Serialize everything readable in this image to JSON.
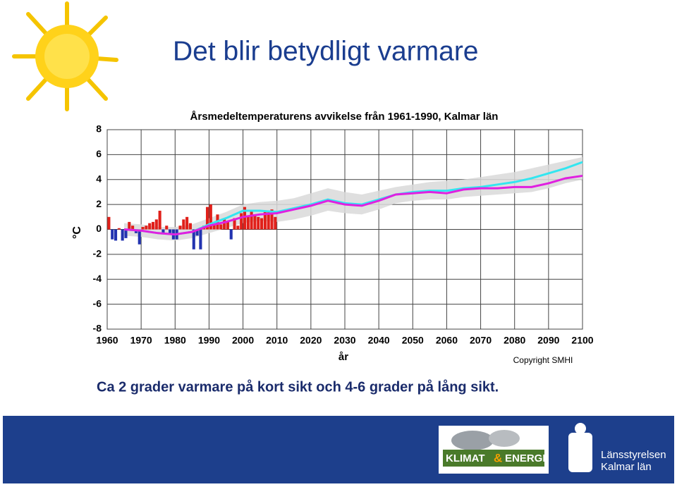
{
  "slide": {
    "title": "Det blir betydligt varmare",
    "subtitle": "Ca 2 grader varmare på kort sikt och 4-6 grader på lång sikt."
  },
  "chart_data": {
    "type": "bar-line",
    "title": "Årsmedeltemperaturens avvikelse från 1961-1990, Kalmar län",
    "x_label": "år",
    "y_label": "°C",
    "note": "Copyright SMHI",
    "xlim": [
      1960,
      2100
    ],
    "xticks": [
      1960,
      1970,
      1980,
      1990,
      2000,
      2010,
      2020,
      2030,
      2040,
      2050,
      2060,
      2070,
      2080,
      2090,
      2100
    ],
    "ylim": [
      -8,
      8
    ],
    "yticks": [
      8,
      6,
      4,
      2,
      0,
      -2,
      -4,
      -6,
      -8
    ],
    "grid": true,
    "bars": {
      "positive_color": "#e0201a",
      "negative_color": "#2233b0",
      "x": [
        1960,
        1961,
        1962,
        1963,
        1964,
        1965,
        1966,
        1967,
        1968,
        1969,
        1970,
        1971,
        1972,
        1973,
        1974,
        1975,
        1976,
        1977,
        1978,
        1979,
        1980,
        1981,
        1982,
        1983,
        1984,
        1985,
        1986,
        1987,
        1988,
        1989,
        1990,
        1991,
        1992,
        1993,
        1994,
        1995,
        1996,
        1997,
        1998,
        1999,
        2000,
        2001,
        2002,
        2003,
        2004,
        2005,
        2006,
        2007,
        2008,
        2009
      ],
      "values": [
        1.0,
        -0.8,
        -0.9,
        0.1,
        -0.9,
        -0.7,
        0.6,
        0.3,
        -0.3,
        -1.2,
        0.2,
        0.3,
        0.5,
        0.6,
        0.8,
        1.5,
        -0.3,
        0.3,
        -0.3,
        -0.8,
        -0.8,
        0.3,
        0.8,
        1.0,
        0.5,
        -1.6,
        -0.5,
        -1.6,
        0.3,
        1.8,
        2.0,
        0.5,
        1.2,
        0.4,
        0.9,
        0.6,
        -0.8,
        0.9,
        0.3,
        1.3,
        1.8,
        1.0,
        1.5,
        1.2,
        1.0,
        0.9,
        1.5,
        1.5,
        1.6,
        1.0
      ]
    },
    "band": {
      "color": "#d9d9d9",
      "x": [
        1965,
        1970,
        1975,
        1980,
        1985,
        1990,
        1995,
        2000,
        2005,
        2010,
        2015,
        2020,
        2025,
        2030,
        2035,
        2040,
        2045,
        2050,
        2055,
        2060,
        2065,
        2070,
        2075,
        2080,
        2085,
        2090,
        2095,
        2100
      ],
      "upper": [
        0.5,
        0.4,
        0.2,
        0.2,
        0.4,
        0.9,
        1.4,
        2.0,
        2.2,
        2.3,
        2.5,
        2.9,
        3.3,
        3.0,
        2.8,
        3.1,
        3.4,
        3.6,
        3.8,
        3.9,
        4.0,
        4.2,
        4.4,
        4.6,
        4.9,
        5.2,
        5.5,
        5.8
      ],
      "lower": [
        -0.5,
        -0.6,
        -0.8,
        -0.9,
        -0.7,
        -0.3,
        0.1,
        0.5,
        0.7,
        0.6,
        0.8,
        1.1,
        1.5,
        1.3,
        1.2,
        1.6,
        2.1,
        2.3,
        2.4,
        2.4,
        2.6,
        2.7,
        2.8,
        2.9,
        3.0,
        3.3,
        3.7,
        4.0
      ]
    },
    "series": [
      {
        "color": "#33e6f0",
        "x": [
          1965,
          1970,
          1975,
          1980,
          1985,
          1990,
          1995,
          2000,
          2005,
          2010,
          2015,
          2020,
          2025,
          2030,
          2035,
          2040,
          2045,
          2050,
          2055,
          2060,
          2065,
          2070,
          2075,
          2080,
          2085,
          2090,
          2095,
          2100
        ],
        "values": [
          0.0,
          -0.1,
          -0.3,
          -0.4,
          -0.2,
          0.4,
          0.9,
          1.5,
          1.5,
          1.4,
          1.7,
          2.0,
          2.4,
          2.1,
          2.0,
          2.4,
          2.8,
          3.0,
          3.1,
          3.1,
          3.3,
          3.4,
          3.6,
          3.8,
          4.1,
          4.5,
          4.9,
          5.4
        ]
      },
      {
        "color": "#e020e0",
        "x": [
          1965,
          1970,
          1975,
          1980,
          1985,
          1990,
          1995,
          2000,
          2005,
          2010,
          2015,
          2020,
          2025,
          2030,
          2035,
          2040,
          2045,
          2050,
          2055,
          2060,
          2065,
          2070,
          2075,
          2080,
          2085,
          2090,
          2095,
          2100
        ],
        "values": [
          0.0,
          -0.1,
          -0.3,
          -0.4,
          -0.2,
          0.3,
          0.6,
          1.0,
          1.2,
          1.3,
          1.6,
          1.9,
          2.3,
          2.0,
          1.9,
          2.3,
          2.8,
          2.9,
          3.0,
          2.9,
          3.2,
          3.3,
          3.3,
          3.4,
          3.4,
          3.7,
          4.1,
          4.3
        ]
      }
    ]
  },
  "footer": {
    "logo": [
      "KLIMAT",
      "&",
      "ENERGI"
    ],
    "agency": [
      "Länsstyrelsen",
      "Kalmar län"
    ]
  }
}
